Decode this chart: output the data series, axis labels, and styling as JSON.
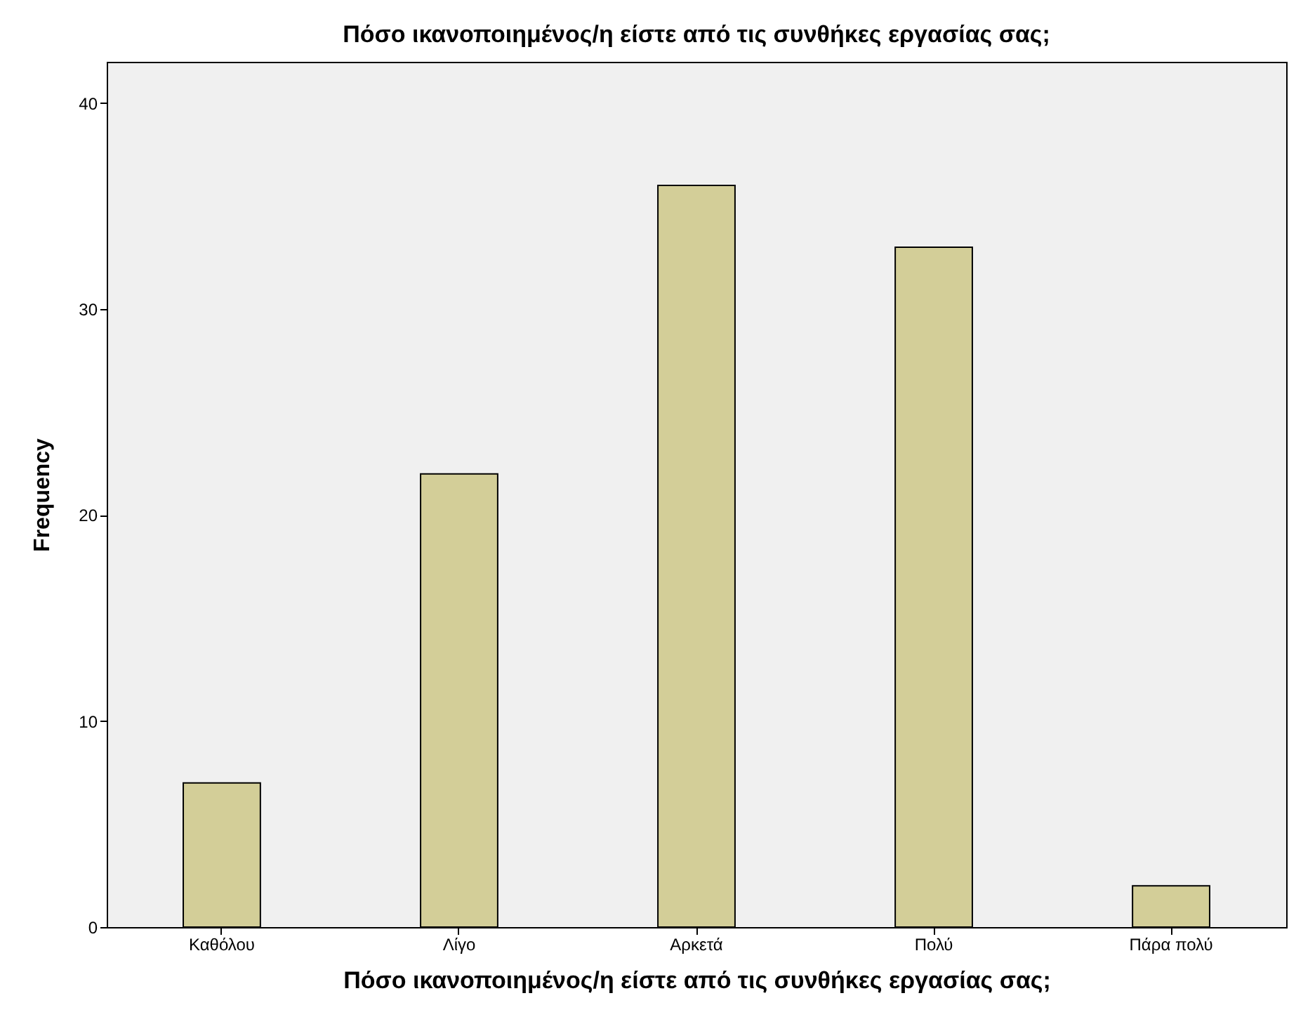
{
  "chart_data": {
    "type": "bar",
    "title": "Πόσο ικανοποιημένος/η είστε από τις συνθήκες εργασίας σας;",
    "xlabel": "Πόσο ικανοποιημένος/η είστε από τις συνθήκες εργασίας σας;",
    "ylabel": "Frequency",
    "categories": [
      "Καθόλου",
      "Λίγο",
      "Αρκετά",
      "Πολύ",
      "Πάρα πολύ"
    ],
    "values": [
      7,
      22,
      36,
      33,
      2
    ],
    "color": "#d3ce98",
    "ylim": [
      0,
      42
    ],
    "yticks": [
      0,
      10,
      20,
      30,
      40
    ],
    "grid": false
  }
}
